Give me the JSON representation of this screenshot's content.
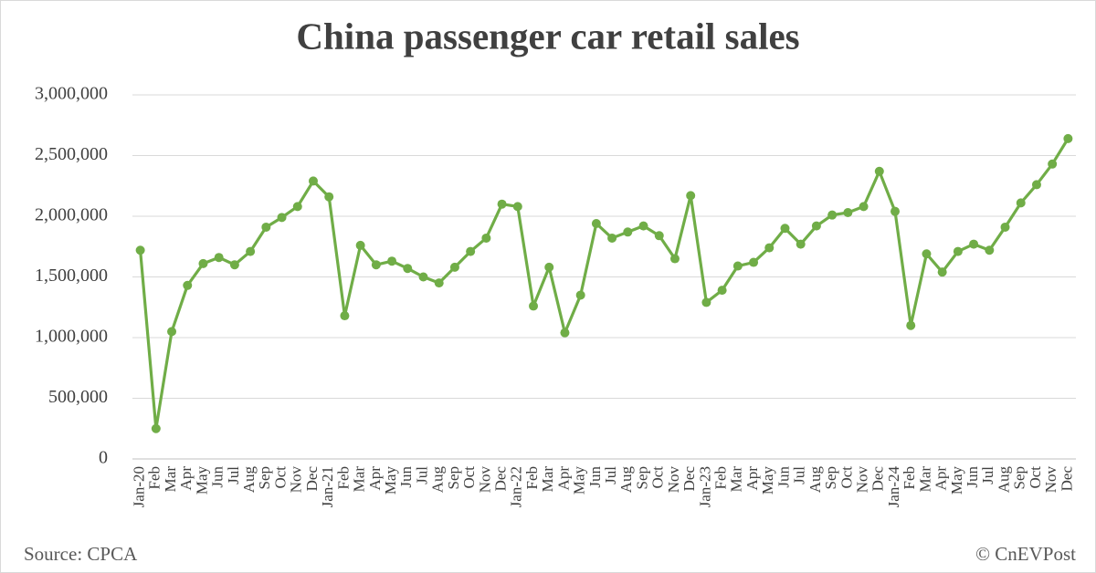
{
  "chart_data": {
    "type": "line",
    "title": "China passenger car retail sales",
    "source": "Source: CPCA",
    "credit": "© CnEVPost",
    "categories": [
      "Jan-20",
      "Feb",
      "Mar",
      "Apr",
      "May",
      "Jun",
      "Jul",
      "Aug",
      "Sep",
      "Oct",
      "Nov",
      "Dec",
      "Jan-21",
      "Feb",
      "Mar",
      "Apr",
      "May",
      "Jun",
      "Jul",
      "Aug",
      "Sep",
      "Oct",
      "Nov",
      "Dec",
      "Jan-22",
      "Feb",
      "Mar",
      "Apr",
      "May",
      "Jun",
      "Jul",
      "Aug",
      "Sep",
      "Oct",
      "Nov",
      "Dec",
      "Jan-23",
      "Feb",
      "Mar",
      "Apr",
      "May",
      "Jun",
      "Jul",
      "Aug",
      "Sep",
      "Oct",
      "Nov",
      "Dec",
      "Jan-24",
      "Feb",
      "Mar",
      "Apr",
      "May",
      "Jun",
      "Jul",
      "Aug",
      "Sep",
      "Oct",
      "Nov",
      "Dec"
    ],
    "values": [
      1720000,
      250000,
      1050000,
      1430000,
      1610000,
      1660000,
      1600000,
      1710000,
      1910000,
      1990000,
      2080000,
      2290000,
      2160000,
      1180000,
      1760000,
      1600000,
      1630000,
      1570000,
      1500000,
      1450000,
      1580000,
      1710000,
      1820000,
      2100000,
      2080000,
      1260000,
      1580000,
      1040000,
      1350000,
      1940000,
      1820000,
      1870000,
      1920000,
      1840000,
      1650000,
      2170000,
      1290000,
      1390000,
      1590000,
      1620000,
      1740000,
      1900000,
      1770000,
      1920000,
      2010000,
      2030000,
      2080000,
      2370000,
      2040000,
      1100000,
      1690000,
      1540000,
      1710000,
      1770000,
      1720000,
      1910000,
      2110000,
      2260000,
      2430000,
      2640000
    ],
    "color": "#70ad47",
    "ylim": [
      0,
      3000000
    ],
    "yticks": [
      0,
      {
        "value": 500000,
        "label": "500,000"
      },
      {
        "value": 1000000,
        "label": "1,000,000"
      },
      {
        "value": 1500000,
        "label": "1,500,000"
      },
      {
        "value": 2000000,
        "label": "2,000,000"
      },
      {
        "value": 2500000,
        "label": "2,500,000"
      },
      {
        "value": 3000000,
        "label": "3,000,000"
      }
    ],
    "grid": true
  }
}
